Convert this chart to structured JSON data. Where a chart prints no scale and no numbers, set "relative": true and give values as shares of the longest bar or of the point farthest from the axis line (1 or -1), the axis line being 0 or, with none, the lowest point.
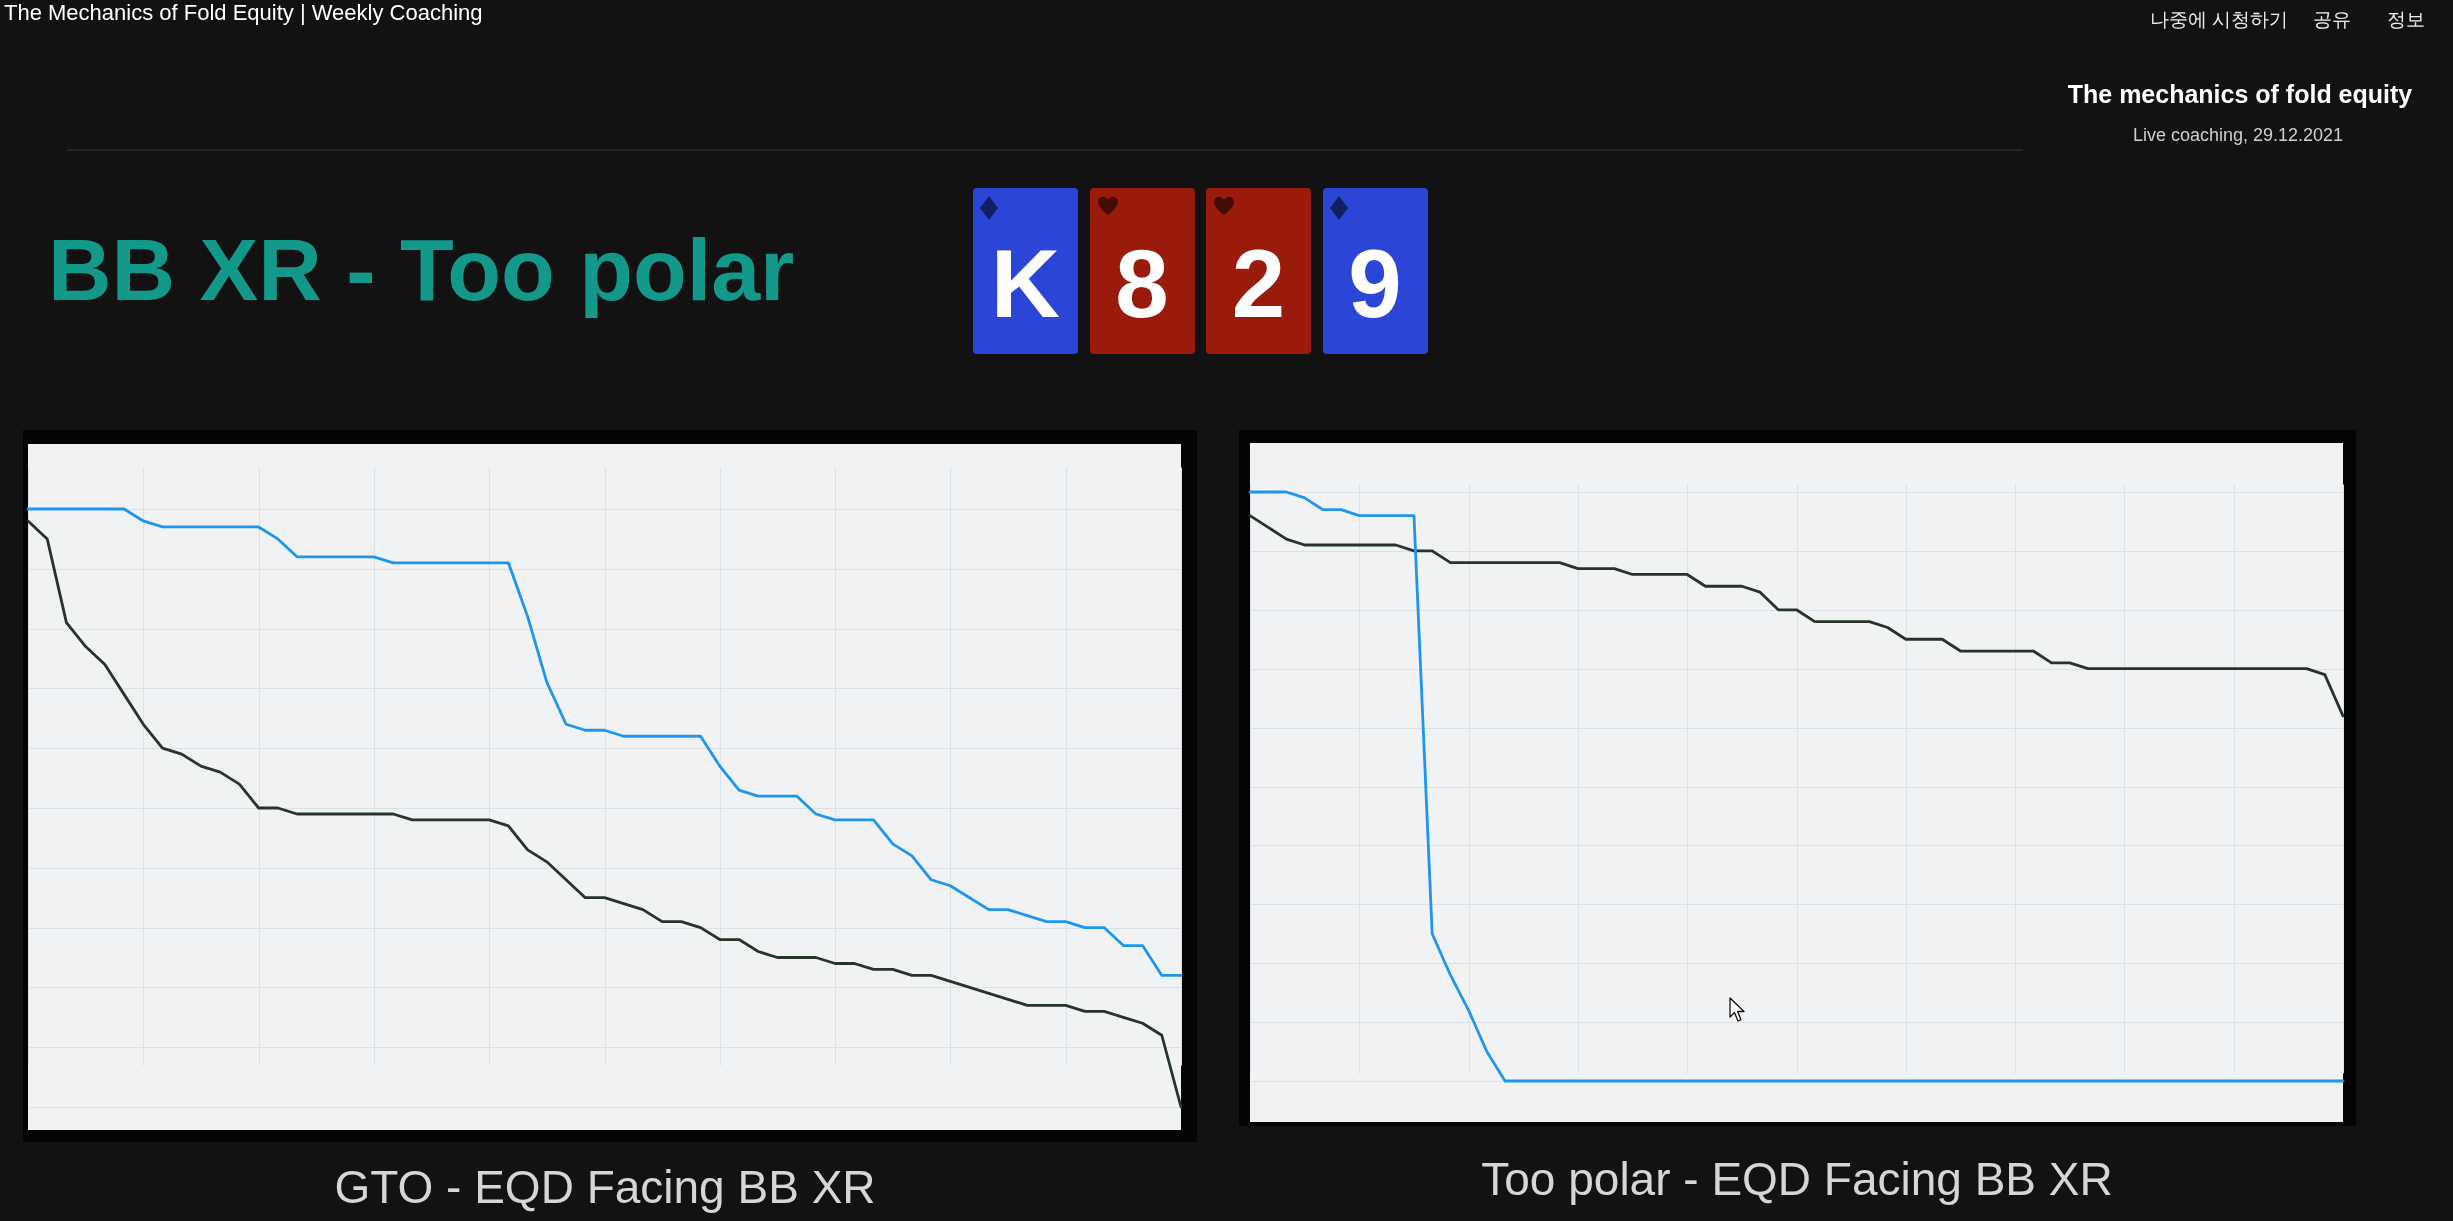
{
  "chart_data": [
    {
      "type": "other",
      "title": "BB XR - Too polar",
      "annotations": [
        "The Mechanics of Fold Equity | Weekly Coaching",
        "나중에 시청하기",
        "공유",
        "정보",
        "The mechanics of fold equity",
        "Live coaching, 29.12.2021"
      ],
      "categories": [
        "K",
        "8",
        "2",
        "9"
      ],
      "colors": [
        "#2b45d6",
        "#9a1b0b",
        "#9a1b0b",
        "#2b45d6"
      ]
    },
    {
      "type": "line",
      "relative": true,
      "grid": true,
      "xlabel": "GTO - EQD Facing BB XR",
      "categories": [
        null,
        null,
        null,
        null,
        null,
        null,
        null,
        null,
        null,
        null,
        null,
        null,
        null,
        null,
        null,
        null,
        null,
        null,
        null,
        null,
        null,
        null,
        null,
        null,
        null,
        null,
        null,
        null,
        null,
        null,
        null,
        null,
        null,
        null,
        null,
        null,
        null,
        null,
        null,
        null,
        null,
        null,
        null,
        null,
        null,
        null,
        null,
        null,
        null,
        null,
        null,
        null,
        null,
        null,
        null,
        null,
        null,
        null,
        null,
        null,
        null
      ],
      "series": [
        {
          "color": "#27342a",
          "values": [
            0.98,
            0.95,
            0.81,
            0.77,
            0.74,
            0.69,
            0.64,
            0.6,
            0.59,
            0.57,
            0.56,
            0.54,
            0.5,
            0.5,
            0.49,
            0.49,
            0.49,
            0.49,
            0.49,
            0.49,
            0.48,
            0.48,
            0.48,
            0.48,
            0.48,
            0.47,
            0.43,
            0.41,
            0.38,
            0.35,
            0.35,
            0.34,
            0.33,
            0.31,
            0.31,
            0.3,
            0.28,
            0.28,
            0.26,
            0.25,
            0.25,
            0.25,
            0.24,
            0.24,
            0.23,
            0.23,
            0.22,
            0.22,
            0.21,
            0.2,
            0.19,
            0.18,
            0.17,
            0.17,
            0.17,
            0.16,
            0.16,
            0.15,
            0.14,
            0.12,
            0.0
          ]
        },
        {
          "color": "#1e96f0",
          "values": [
            1.0,
            1.0,
            1.0,
            1.0,
            1.0,
            1.0,
            0.98,
            0.97,
            0.97,
            0.97,
            0.97,
            0.97,
            0.97,
            0.95,
            0.92,
            0.92,
            0.92,
            0.92,
            0.92,
            0.91,
            0.91,
            0.91,
            0.91,
            0.91,
            0.91,
            0.91,
            0.82,
            0.71,
            0.64,
            0.63,
            0.63,
            0.62,
            0.62,
            0.62,
            0.62,
            0.62,
            0.57,
            0.53,
            0.52,
            0.52,
            0.52,
            0.49,
            0.48,
            0.48,
            0.48,
            0.44,
            0.42,
            0.38,
            0.37,
            0.35,
            0.33,
            0.33,
            0.32,
            0.31,
            0.31,
            0.3,
            0.3,
            0.27,
            0.27,
            0.22,
            0.22
          ]
        }
      ]
    },
    {
      "type": "line",
      "relative": true,
      "grid": true,
      "xlabel": "Too polar - EQD Facing BB XR",
      "categories": [
        null,
        null,
        null,
        null,
        null,
        null,
        null,
        null,
        null,
        null,
        null,
        null,
        null,
        null,
        null,
        null,
        null,
        null,
        null,
        null,
        null,
        null,
        null,
        null,
        null,
        null,
        null,
        null,
        null,
        null,
        null,
        null,
        null,
        null,
        null,
        null,
        null,
        null,
        null,
        null,
        null,
        null,
        null,
        null,
        null,
        null,
        null,
        null,
        null,
        null,
        null,
        null,
        null,
        null,
        null,
        null,
        null,
        null,
        null,
        null,
        null
      ],
      "series": [
        {
          "color": "#27342a",
          "values": [
            0.96,
            0.94,
            0.92,
            0.91,
            0.91,
            0.91,
            0.91,
            0.91,
            0.91,
            0.9,
            0.9,
            0.88,
            0.88,
            0.88,
            0.88,
            0.88,
            0.88,
            0.88,
            0.87,
            0.87,
            0.87,
            0.86,
            0.86,
            0.86,
            0.86,
            0.84,
            0.84,
            0.84,
            0.83,
            0.8,
            0.8,
            0.78,
            0.78,
            0.78,
            0.78,
            0.77,
            0.75,
            0.75,
            0.75,
            0.73,
            0.73,
            0.73,
            0.73,
            0.73,
            0.71,
            0.71,
            0.7,
            0.7,
            0.7,
            0.7,
            0.7,
            0.7,
            0.7,
            0.7,
            0.7,
            0.7,
            0.7,
            0.7,
            0.7,
            0.69,
            0.62
          ]
        },
        {
          "color": "#1e96f0",
          "values": [
            1.0,
            1.0,
            1.0,
            0.99,
            0.97,
            0.97,
            0.96,
            0.96,
            0.96,
            0.96,
            0.25,
            0.18,
            0.12,
            0.05,
            0.0,
            0.0,
            0.0,
            0.0,
            0.0,
            0.0,
            0.0,
            0.0,
            0.0,
            0.0,
            0.0,
            0.0,
            0.0,
            0.0,
            0.0,
            0.0,
            0.0,
            0.0,
            0.0,
            0.0,
            0.0,
            0.0,
            0.0,
            0.0,
            0.0,
            0.0,
            0.0,
            0.0,
            0.0,
            0.0,
            0.0,
            0.0,
            0.0,
            0.0,
            0.0,
            0.0,
            0.0,
            0.0,
            0.0,
            0.0,
            0.0,
            0.0,
            0.0,
            0.0,
            0.0,
            0.0,
            0.0
          ]
        }
      ]
    }
  ]
}
